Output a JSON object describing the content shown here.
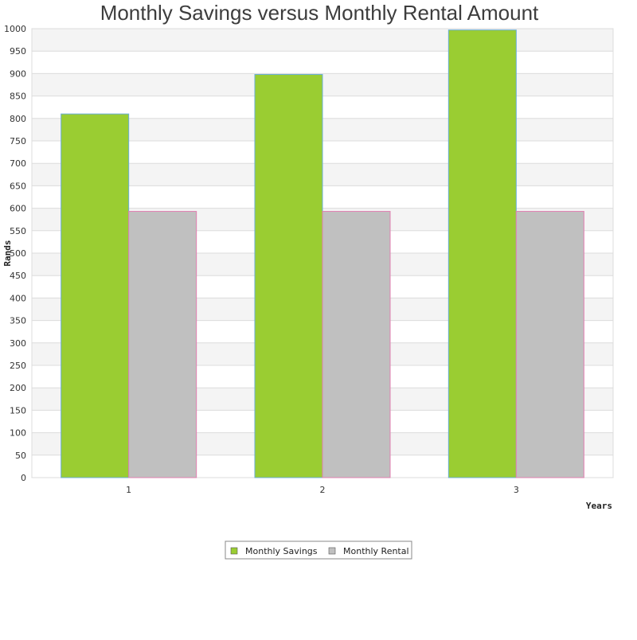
{
  "chart_data": {
    "type": "bar",
    "title": "Monthly Savings versus Monthly Rental Amount",
    "xlabel": "Years",
    "ylabel": "Rands",
    "categories": [
      "1",
      "2",
      "3"
    ],
    "series": [
      {
        "name": "Monthly Savings",
        "values": [
          810,
          898,
          997
        ],
        "color": "#9acd32",
        "stroke": "#6aaed6"
      },
      {
        "name": "Monthly Rental",
        "values": [
          593,
          593,
          593
        ],
        "color": "#c0c0c0",
        "stroke": "#e17fb1"
      }
    ],
    "ylim": [
      0,
      1000
    ],
    "yticks": [
      0,
      50,
      100,
      150,
      200,
      250,
      300,
      350,
      400,
      450,
      500,
      550,
      600,
      650,
      700,
      750,
      800,
      850,
      900,
      950,
      1000
    ],
    "grid": true,
    "band_colors": [
      "#f4f4f4",
      "#ffffff"
    ],
    "legend_position": "bottom-center"
  }
}
